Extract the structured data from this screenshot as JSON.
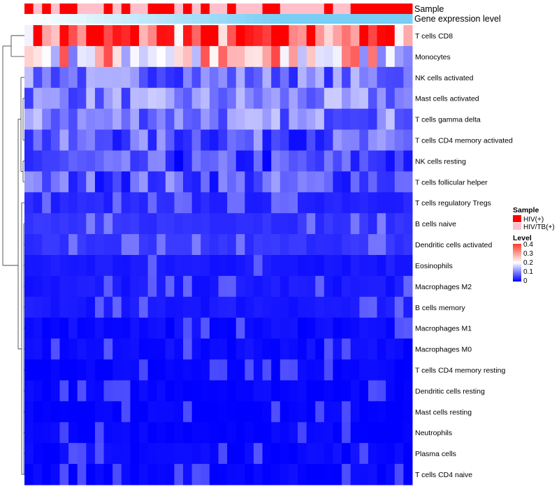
{
  "chart_data": {
    "type": "heatmap",
    "columns": 44,
    "annotation_rows": [
      {
        "name": "Sample",
        "values": [
          "HIV(+)",
          "HIV/TB(+)",
          "HIV(+)",
          "HIV/TB(+)",
          "HIV(+)",
          "HIV(+)",
          "HIV/TB(+)",
          "HIV/TB(+)",
          "HIV/TB(+)",
          "HIV(+)",
          "HIV/TB(+)",
          "HIV(+)",
          "HIV/TB(+)",
          "HIV/TB(+)",
          "HIV(+)",
          "HIV(+)",
          "HIV(+)",
          "HIV/TB(+)",
          "HIV(+)",
          "HIV/TB(+)",
          "HIV(+)",
          "HIV/TB(+)",
          "HIV/TB(+)",
          "HIV(+)",
          "HIV/TB(+)",
          "HIV/TB(+)",
          "HIV/TB(+)",
          "HIV(+)",
          "HIV(+)",
          "HIV/TB(+)",
          "HIV/TB(+)",
          "HIV/TB(+)",
          "HIV/TB(+)",
          "HIV/TB(+)",
          "HIV(+)",
          "HIV/TB(+)",
          "HIV/TB(+)",
          "HIV(+)",
          "HIV(+)",
          "HIV(+)",
          "HIV(+)",
          "HIV(+)",
          "HIV(+)",
          "HIV(+)"
        ]
      },
      {
        "name": "Gene expression level",
        "values": [
          0,
          0.03,
          0.05,
          0.08,
          0.1,
          0.13,
          0.15,
          0.18,
          0.2,
          0.23,
          0.25,
          0.28,
          0.3,
          0.33,
          0.35,
          0.38,
          0.4,
          0.43,
          0.45,
          0.48,
          0.5,
          0.53,
          0.55,
          0.58,
          0.6,
          0.63,
          0.65,
          0.68,
          0.7,
          0.73,
          0.75,
          0.78,
          0.8,
          0.83,
          0.85,
          0.88,
          0.9,
          0.93,
          0.95,
          0.97,
          0.98,
          0.99,
          1,
          1
        ]
      }
    ],
    "rows": [
      "T cells CD8",
      "Monocytes",
      "NK cells activated",
      "Mast cells activated",
      "T cells gamma delta",
      "T cells CD4 memory activated",
      "NK cells resting",
      "T cells follicular helper",
      "T cells regulatory  Tregs",
      "B cells naive",
      "Dendritic cells activated",
      "Eosinophils",
      "Macrophages M2",
      "B cells memory",
      "Macrophages M1",
      "Macrophages M0",
      "T cells CD4 memory resting",
      "Dendritic cells resting",
      "Mast cells resting",
      "Neutrophils",
      "Plasma cells",
      "T cells CD4 naive"
    ],
    "row_levels": [
      0.33,
      0.22,
      0.09,
      0.1,
      0.1,
      0.07,
      0.05,
      0.07,
      0.03,
      0.04,
      0.04,
      0.02,
      0.02,
      0.02,
      0.01,
      0.01,
      0.005,
      0.005,
      0.004,
      0.003,
      0.008,
      0.006
    ],
    "color_scale": {
      "low": "#0000ff",
      "mid": "#ffffff",
      "high": "#ff0000",
      "range": [
        0,
        0.4
      ]
    },
    "legends": {
      "sample": {
        "title": "Sample",
        "items": [
          {
            "label": "HIV(+)",
            "color": "#ff0000"
          },
          {
            "label": "HIV/TB(+)",
            "color": "#ffc0cb"
          }
        ]
      },
      "level": {
        "title": "Level",
        "ticks": [
          "0.4",
          "0.3",
          "0.2",
          "0.1",
          "0"
        ]
      }
    },
    "dendrogram": "rows"
  }
}
